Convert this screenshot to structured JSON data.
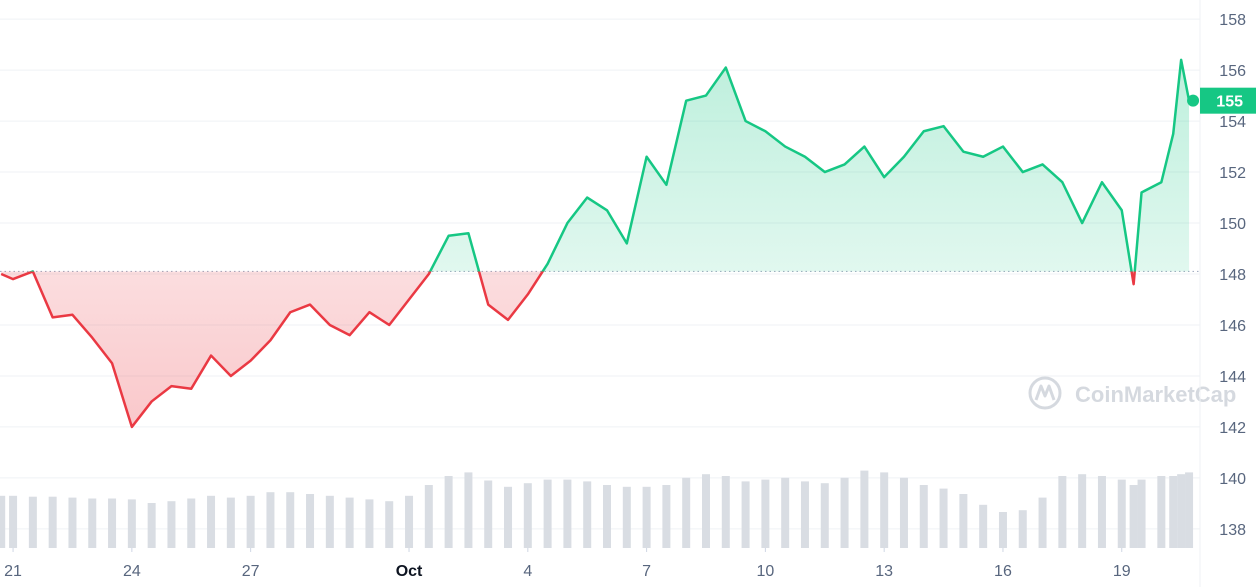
{
  "chart_data": {
    "type": "line",
    "watermark": "CoinMarketCap",
    "x": [
      -0.3,
      0,
      0.5,
      1,
      1.5,
      2,
      2.5,
      3,
      3.5,
      4,
      4.5,
      5,
      5.5,
      6,
      6.5,
      7,
      7.5,
      8,
      8.5,
      9,
      9.5,
      10,
      10.5,
      11,
      11.5,
      12,
      12.5,
      13,
      13.5,
      14,
      14.5,
      15,
      15.5,
      16,
      16.5,
      17,
      17.5,
      18,
      18.5,
      19,
      19.5,
      20,
      20.5,
      21,
      21.5,
      22,
      22.5,
      23,
      23.5,
      24,
      24.5,
      25,
      25.5,
      26,
      26.5,
      27,
      27.5,
      28,
      28.3,
      28.5,
      29,
      29.3,
      29.5,
      29.7
    ],
    "values": [
      148.0,
      147.8,
      148.1,
      146.3,
      146.4,
      145.5,
      144.5,
      142.0,
      143.0,
      143.6,
      143.5,
      144.8,
      144.0,
      144.6,
      145.4,
      146.5,
      146.8,
      146.0,
      145.6,
      146.5,
      146.0,
      147.0,
      148.0,
      149.5,
      149.6,
      146.8,
      146.2,
      147.2,
      148.4,
      150.0,
      151.0,
      150.5,
      149.2,
      152.6,
      151.5,
      154.8,
      155.0,
      156.1,
      154.0,
      153.6,
      153.0,
      152.6,
      152.0,
      152.3,
      153.0,
      151.8,
      152.6,
      153.6,
      153.8,
      152.8,
      152.6,
      153.0,
      152.0,
      152.3,
      151.6,
      150.0,
      151.6,
      150.5,
      147.6,
      151.2,
      151.6,
      153.5,
      156.4,
      154.8
    ],
    "volume": [
      58,
      58,
      57,
      57,
      56,
      55,
      55,
      54,
      50,
      52,
      55,
      58,
      56,
      58,
      62,
      62,
      60,
      58,
      56,
      54,
      52,
      58,
      70,
      80,
      84,
      75,
      68,
      72,
      76,
      76,
      74,
      70,
      68,
      68,
      70,
      78,
      82,
      80,
      74,
      76,
      78,
      74,
      72,
      78,
      86,
      84,
      78,
      70,
      66,
      60,
      48,
      40,
      42,
      56,
      80,
      82,
      80,
      76,
      70,
      76,
      80,
      80,
      82,
      84
    ],
    "volume_lim": [
      0,
      100
    ],
    "baseline": 148.1,
    "up_color": "#16c784",
    "down_color": "#ea3943",
    "volume_color": "#d9dde3",
    "price_label": {
      "value": 154.8,
      "label": "155"
    },
    "xlim": [
      -0.33,
      29.85
    ],
    "xticks": [
      {
        "value": 0,
        "label": "21"
      },
      {
        "value": 3,
        "label": "24"
      },
      {
        "value": 6,
        "label": "27"
      },
      {
        "value": 10,
        "label": "Oct"
      },
      {
        "value": 13,
        "label": "4"
      },
      {
        "value": 16,
        "label": "7"
      },
      {
        "value": 19,
        "label": "10"
      },
      {
        "value": 22,
        "label": "13"
      },
      {
        "value": 25,
        "label": "16"
      },
      {
        "value": 28,
        "label": "19"
      }
    ],
    "ylim": [
      137.25,
      158.75
    ],
    "yticks": [
      138,
      140,
      142,
      144,
      146,
      148,
      150,
      152,
      154,
      156,
      158
    ],
    "grid": true
  }
}
